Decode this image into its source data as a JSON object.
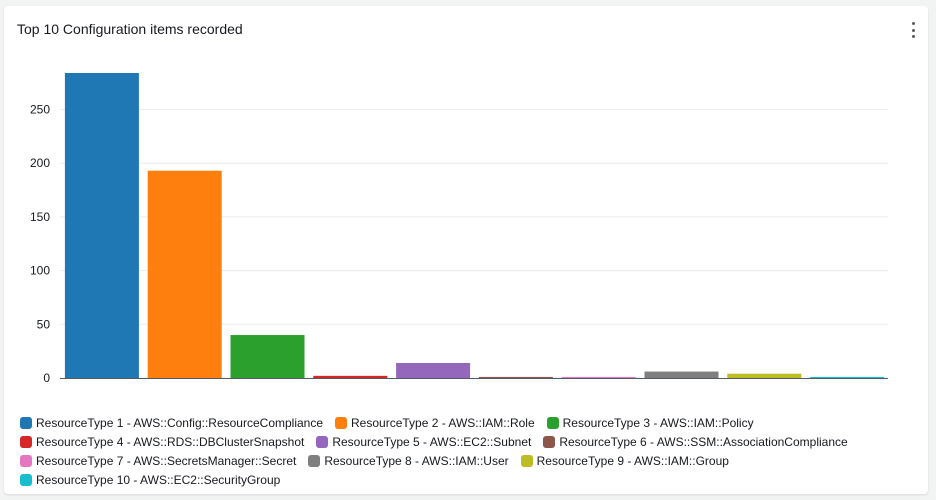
{
  "widget": {
    "title": "Top 10 Configuration items recorded",
    "menu_icon": "more-vertical-icon"
  },
  "chart_data": {
    "type": "bar",
    "title": "Top 10 Configuration items recorded",
    "categories": [
      "ResourceType 1 - AWS::Config::ResourceCompliance",
      "ResourceType 2 - AWS::IAM::Role",
      "ResourceType 3 - AWS::IAM::Policy",
      "ResourceType 4 - AWS::RDS::DBClusterSnapshot",
      "ResourceType 5 - AWS::EC2::Subnet",
      "ResourceType 6 - AWS::SSM::AssociationCompliance",
      "ResourceType 7 - AWS::SecretsManager::Secret",
      "ResourceType 8 - AWS::IAM::User",
      "ResourceType 9 - AWS::IAM::Group",
      "ResourceType 10 - AWS::EC2::SecurityGroup"
    ],
    "values": [
      284,
      193,
      40,
      2,
      14,
      1,
      1,
      6,
      4,
      1
    ],
    "colors": [
      "#1f77b4",
      "#ff7f0e",
      "#2ca02c",
      "#d62728",
      "#9467bd",
      "#8c564b",
      "#e377c2",
      "#7f7f7f",
      "#bcbd22",
      "#17becf"
    ],
    "yticks": [
      0,
      50,
      100,
      150,
      200,
      250
    ],
    "ylim": [
      0,
      290
    ],
    "grid": true,
    "legend_position": "bottom"
  }
}
